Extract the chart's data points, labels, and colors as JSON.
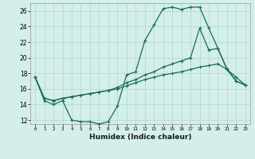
{
  "xlabel": "Humidex (Indice chaleur)",
  "ylabel": "",
  "bg_color": "#d4eeea",
  "grid_color": "#b0d8d2",
  "line_color": "#1a6b5a",
  "xlim": [
    -0.5,
    23.5
  ],
  "ylim": [
    11.5,
    27.0
  ],
  "xtick_vals": [
    0,
    1,
    2,
    3,
    4,
    5,
    6,
    7,
    8,
    9,
    10,
    11,
    12,
    13,
    14,
    15,
    16,
    17,
    18,
    19,
    20,
    21,
    22,
    23
  ],
  "ytick_vals": [
    12,
    14,
    16,
    18,
    20,
    22,
    24,
    26
  ],
  "series1_x": [
    0,
    1,
    2,
    3,
    4,
    5,
    6,
    7,
    8,
    9,
    10,
    11,
    12,
    13,
    14,
    15,
    16,
    17,
    18,
    19,
    20,
    21,
    22,
    23
  ],
  "series1_y": [
    17.5,
    14.5,
    14.0,
    14.5,
    12.0,
    11.8,
    11.8,
    11.5,
    11.8,
    13.8,
    17.8,
    18.2,
    22.2,
    24.2,
    26.3,
    26.5,
    26.2,
    26.5,
    26.5,
    23.8,
    21.2,
    18.5,
    17.5,
    16.5
  ],
  "series2_x": [
    0,
    1,
    2,
    3,
    4,
    5,
    6,
    7,
    8,
    9,
    10,
    11,
    12,
    13,
    14,
    15,
    16,
    17,
    18,
    19,
    20,
    21,
    22,
    23
  ],
  "series2_y": [
    17.5,
    14.8,
    14.5,
    14.8,
    15.0,
    15.2,
    15.4,
    15.6,
    15.8,
    16.2,
    16.8,
    17.2,
    17.8,
    18.2,
    18.8,
    19.2,
    19.6,
    20.0,
    23.8,
    21.0,
    21.2,
    18.5,
    17.0,
    16.5
  ],
  "series3_x": [
    0,
    1,
    2,
    3,
    4,
    5,
    6,
    7,
    8,
    9,
    10,
    11,
    12,
    13,
    14,
    15,
    16,
    17,
    18,
    19,
    20,
    21,
    22,
    23
  ],
  "series3_y": [
    17.5,
    14.8,
    14.5,
    14.8,
    15.0,
    15.2,
    15.4,
    15.6,
    15.8,
    16.0,
    16.4,
    16.8,
    17.2,
    17.5,
    17.8,
    18.0,
    18.2,
    18.5,
    18.8,
    19.0,
    19.2,
    18.5,
    17.0,
    16.5
  ]
}
